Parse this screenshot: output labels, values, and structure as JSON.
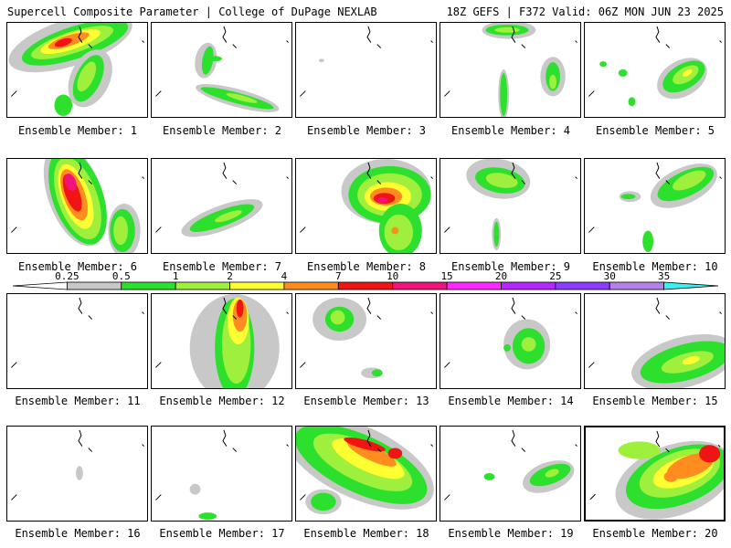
{
  "header": {
    "left": "Supercell Composite Parameter | College of DuPage NEXLAB",
    "right": "18Z GEFS | F372 Valid: 06Z MON JUN 23 2025"
  },
  "colorbar": {
    "ticks": [
      "0.25",
      "0.5",
      "1",
      "2",
      "4",
      "7",
      "10",
      "15",
      "20",
      "25",
      "30",
      "35"
    ],
    "colors": [
      "#ffffff",
      "#c8c8c8",
      "#2ee02e",
      "#9ef03c",
      "#ffff32",
      "#ff8c1e",
      "#f01414",
      "#f0147a",
      "#ff28ff",
      "#b428ff",
      "#8c3cff",
      "#b482e6",
      "#3cf0f0"
    ]
  },
  "members": [
    {
      "id": 1,
      "label": "Ensemble Member: 1"
    },
    {
      "id": 2,
      "label": "Ensemble Member: 2"
    },
    {
      "id": 3,
      "label": "Ensemble Member: 3"
    },
    {
      "id": 4,
      "label": "Ensemble Member: 4"
    },
    {
      "id": 5,
      "label": "Ensemble Member: 5"
    },
    {
      "id": 6,
      "label": "Ensemble Member: 6"
    },
    {
      "id": 7,
      "label": "Ensemble Member: 7"
    },
    {
      "id": 8,
      "label": "Ensemble Member: 8"
    },
    {
      "id": 9,
      "label": "Ensemble Member: 9"
    },
    {
      "id": 10,
      "label": "Ensemble Member: 10"
    },
    {
      "id": 11,
      "label": "Ensemble Member: 11"
    },
    {
      "id": 12,
      "label": "Ensemble Member: 12"
    },
    {
      "id": 13,
      "label": "Ensemble Member: 13"
    },
    {
      "id": 14,
      "label": "Ensemble Member: 14"
    },
    {
      "id": 15,
      "label": "Ensemble Member: 15"
    },
    {
      "id": 16,
      "label": "Ensemble Member: 16"
    },
    {
      "id": 17,
      "label": "Ensemble Member: 17"
    },
    {
      "id": 18,
      "label": "Ensemble Member: 18"
    },
    {
      "id": 19,
      "label": "Ensemble Member: 19"
    },
    {
      "id": 20,
      "label": "Ensemble Member: 20"
    }
  ],
  "selected_member": 20
}
